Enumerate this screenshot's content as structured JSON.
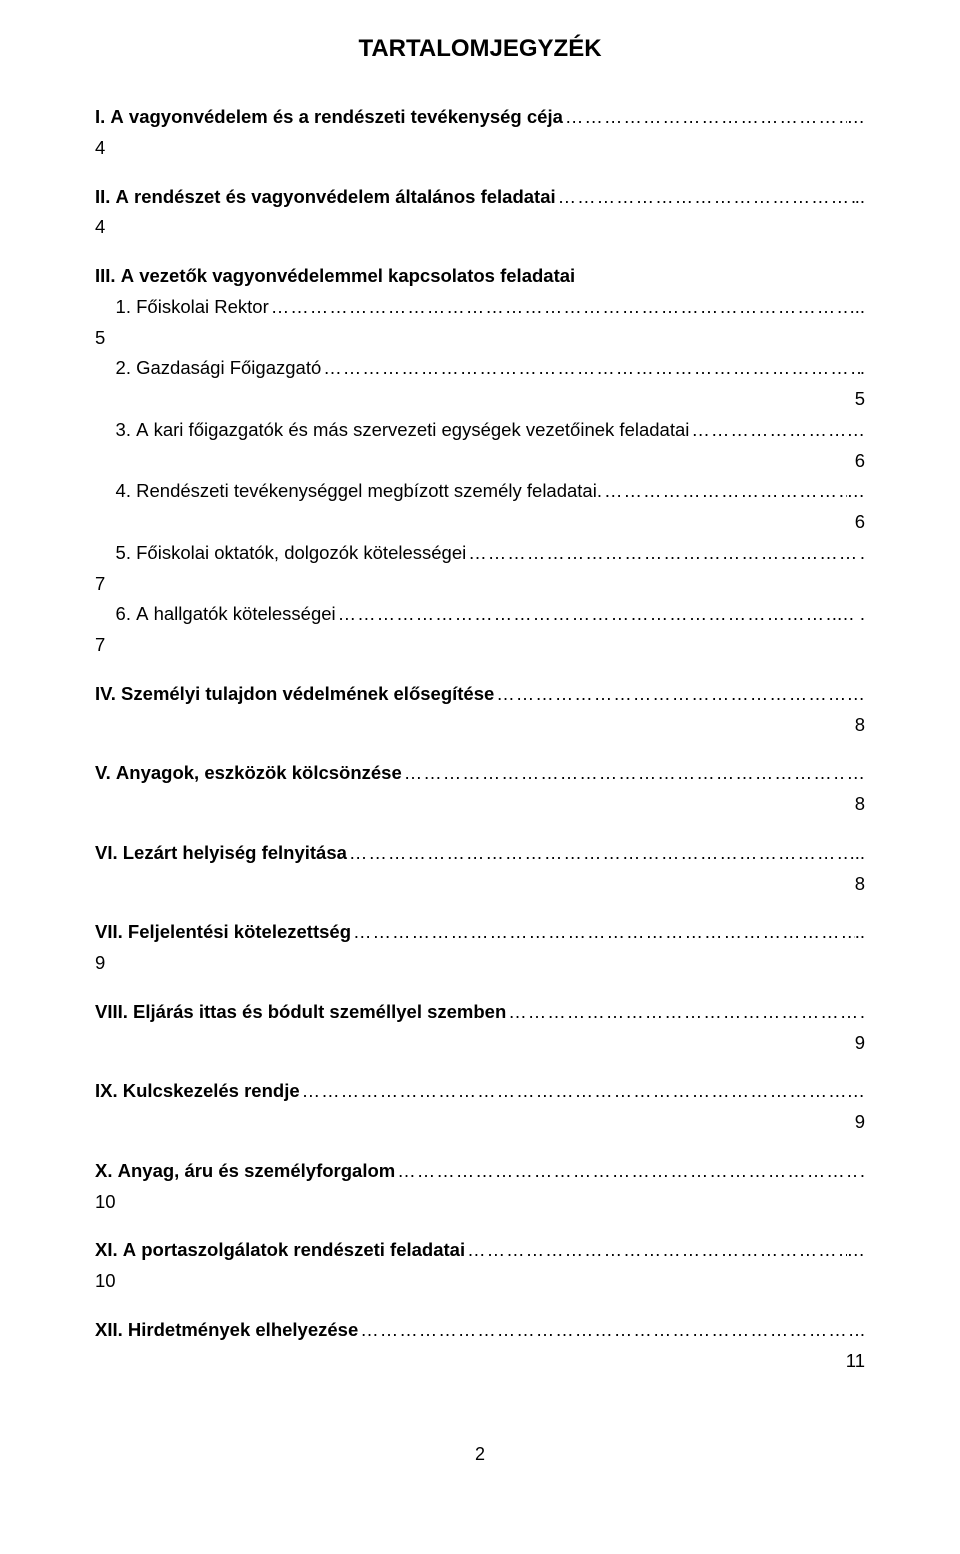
{
  "title": "TARTALOMJEGYZÉK",
  "footer_page": "2",
  "dots": "……………………………………………………………………………………………………………………………………………………",
  "entries": [
    {
      "label": "I. A vagyonvédelem és a rendészeti tevékenység céja",
      "trail": "…",
      "bold": true,
      "page": "4",
      "page_align": "left",
      "gap_after": "md"
    },
    {
      "label": "II. A rendészet és vagyonvédelem általános feladatai",
      "trail": "..",
      "bold": true,
      "page": "4",
      "page_align": "left",
      "gap_after": "md"
    },
    {
      "label": "III. A vezetők vagyonvédelemmel kapcsolatos feladatai",
      "trail": "",
      "bold": true,
      "no_leader": true,
      "gap_after": "none"
    },
    {
      "label": "    1. Főiskolai Rektor",
      "trail": "...",
      "bold": false,
      "page": "5",
      "page_align": "left",
      "gap_after": "none"
    },
    {
      "label": "    2. Gazdasági Főigazgató",
      "trail": ".",
      "bold": false,
      "page": "5",
      "page_align": "right",
      "gap_after": "none"
    },
    {
      "label": "    3. A kari főigazgatók és más szervezeti egységek vezetőinek feladatai",
      "trail": "…",
      "bold": false,
      "page": "6",
      "page_align": "right",
      "gap_after": "none"
    },
    {
      "label": "    4. Rendészeti tevékenységgel megbízott személy feladatai.",
      "trail": "…",
      "bold": false,
      "page": "6",
      "page_align": "right",
      "gap_after": "none"
    },
    {
      "label": "    5. Főiskolai oktatók, dolgozók kötelességei",
      "trail": ".",
      "bold": false,
      "page": "7",
      "page_align": "left",
      "gap_after": "none"
    },
    {
      "label": "    6. A hallgatók kötelességei",
      "trail": "… .",
      "bold": false,
      "page": "7",
      "page_align": "left",
      "gap_after": "md"
    },
    {
      "label": "IV. Személyi tulajdon védelmének elősegítése",
      "trail": "…",
      "bold": true,
      "page": "8",
      "page_align": "right",
      "gap_after": "md"
    },
    {
      "label": "V. Anyagok, eszközök kölcsönzése",
      "trail": "…",
      "bold": true,
      "page": "8",
      "page_align": "right",
      "gap_after": "md"
    },
    {
      "label": "VI. Lezárt helyiség felnyitása",
      "trail": "...",
      "bold": true,
      "page": "8",
      "page_align": "right",
      "gap_after": "md"
    },
    {
      "label": "VII. Feljelentési kötelezettség",
      "trail": "..",
      "bold": true,
      "page": "9",
      "page_align": "left",
      "gap_after": "md"
    },
    {
      "label": "VIII. Eljárás ittas és bódult személlyel szemben",
      "trail": ".",
      "bold": true,
      "page": "9",
      "page_align": "right",
      "gap_after": "md"
    },
    {
      "label": "IX. Kulcskezelés rendje",
      "trail": "…",
      "bold": true,
      "page": "9",
      "page_align": "right",
      "gap_after": "md"
    },
    {
      "label": "X. Anyag, áru és személyforgalom",
      "trail": ".",
      "bold": true,
      "page": "10",
      "page_align": "left",
      "gap_after": "md"
    },
    {
      "label": "XI. A portaszolgálatok rendészeti feladatai",
      "trail": "…",
      "bold": true,
      "page": "10",
      "page_align": "left",
      "gap_after": "md"
    },
    {
      "label": "XII. Hirdetmények elhelyezése",
      "trail": ".",
      "bold": true,
      "page": "11",
      "page_align": "right",
      "gap_after": "none"
    }
  ]
}
